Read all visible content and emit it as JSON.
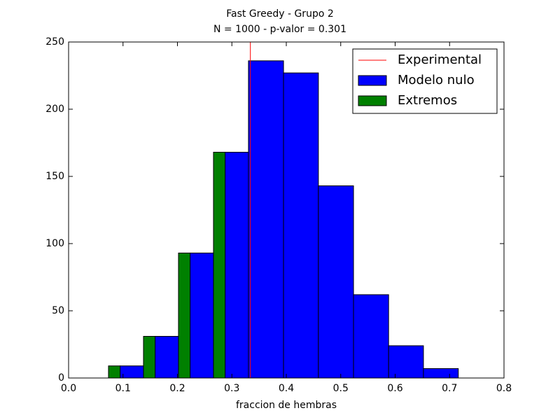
{
  "chart_data": {
    "type": "histogram",
    "title": "Fast Greedy - Grupo 2",
    "subtitle": "N = 1000 - p-valor = 0.301",
    "x_label": "fraccion de hembras",
    "bins": [
      0.0733,
      0.1376,
      0.2019,
      0.2662,
      0.3305,
      0.3949,
      0.459,
      0.5235,
      0.588,
      0.652,
      0.716
    ],
    "series": [
      {
        "name": "Modelo nulo",
        "color": "#0000ff",
        "values": [
          9,
          31,
          93,
          168,
          236,
          227,
          143,
          62,
          24,
          7
        ]
      },
      {
        "name": "Extremos",
        "color": "#008000",
        "values": [
          9,
          31,
          93,
          168,
          null,
          null,
          null,
          null,
          null,
          null
        ]
      }
    ],
    "experimental": {
      "name": "Experimental",
      "color": "#ff0000",
      "value": 0.334
    },
    "xlim": [
      0,
      0.8
    ],
    "xticks": [
      {
        "value": 0,
        "label": "0.0"
      },
      0.1,
      0.2,
      0.3,
      0.4,
      0.5,
      0.6,
      0.7,
      0.8
    ],
    "ylim": [
      0,
      250
    ],
    "yticks": [
      0,
      50,
      100,
      150,
      200,
      250
    ],
    "legend": "upper right"
  }
}
